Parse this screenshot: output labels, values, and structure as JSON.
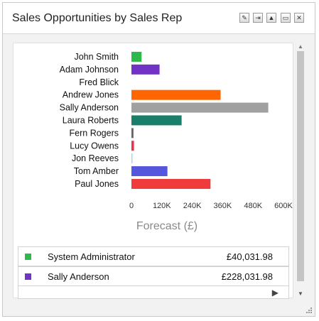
{
  "widget": {
    "title": "Sales Opportunities by Sales Rep",
    "buttons": [
      {
        "name": "edit-button",
        "icon": "pencil-icon",
        "glyph": "✎"
      },
      {
        "name": "pin-button",
        "icon": "pin-icon",
        "glyph": "⇥"
      },
      {
        "name": "collapse-button",
        "icon": "triangle-up-icon",
        "glyph": "▲"
      },
      {
        "name": "maximize-button",
        "icon": "window-icon",
        "glyph": "▭"
      },
      {
        "name": "close-button",
        "icon": "close-icon",
        "glyph": "✕"
      }
    ]
  },
  "chart_data": {
    "type": "bar",
    "orientation": "horizontal",
    "categories": [
      "John Smith",
      "Adam Johnson",
      "Fred Blick",
      "Andrew Jones",
      "Sally Anderson",
      "Laura Roberts",
      "Fern Rogers",
      "Lucy Owens",
      "Jon Reeves",
      "Tom Amber",
      "Paul Jones"
    ],
    "values": [
      40031.98,
      111000,
      0,
      352000,
      540000,
      198000,
      8000,
      10000,
      4000,
      142000,
      312000
    ],
    "colors": [
      "#2db84b",
      "#7033c4",
      "#ffffff",
      "#ff6600",
      "#a0a0a0",
      "#1a7f6a",
      "#666666",
      "#e8334a",
      "#a8d2f0",
      "#5555dd",
      "#ef3b3b"
    ],
    "xlabel": "Forecast (£)",
    "xlim": [
      0,
      600000
    ],
    "ticks": [
      0,
      120000,
      240000,
      360000,
      480000,
      600000
    ],
    "tick_labels": [
      "0",
      "120K",
      "240K",
      "360K",
      "480K",
      "600K"
    ],
    "grid": false
  },
  "legend": [
    {
      "name": "System Administrator",
      "value": "£40,031.98",
      "color": "#2db84b"
    },
    {
      "name": "Sally Anderson",
      "value": "£228,031.98",
      "color": "#7033c4"
    }
  ],
  "pager": {
    "next_glyph": "▶"
  },
  "scrollbar": {
    "up_glyph": "▲",
    "down_glyph": "▼"
  }
}
